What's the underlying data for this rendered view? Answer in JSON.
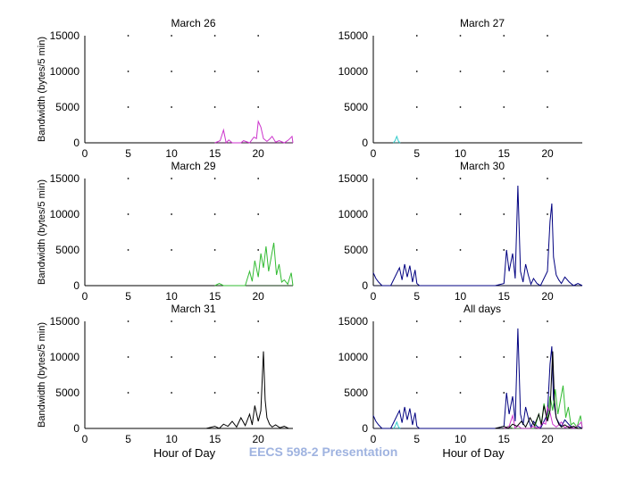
{
  "footer": "EECS 598-2 Presentation",
  "colors": {
    "march26": "#cc33cc",
    "march27": "#33cccc",
    "march29": "#33bb33",
    "march30": "#000080",
    "march31": "#000000",
    "axis": "#000000"
  },
  "chart_data": [
    {
      "type": "line",
      "title": "March 26",
      "ylabel": "Bandwidth (bytes/5 min)",
      "xlabel": "",
      "xlim": [
        0,
        24
      ],
      "ylim": [
        0,
        15000
      ],
      "xticks": [
        0,
        5,
        10,
        15,
        20
      ],
      "yticks": [
        0,
        5000,
        10000,
        15000
      ],
      "series": [
        {
          "name": "March 26",
          "color": "#cc33cc",
          "x": [
            15,
            15.6,
            16,
            16.3,
            16.6,
            17,
            18,
            18.3,
            19,
            19.5,
            19.8,
            20,
            20.3,
            20.6,
            21,
            21.3,
            21.6,
            22,
            22.4,
            23,
            23.5,
            23.9,
            24
          ],
          "y": [
            0,
            300,
            1800,
            0,
            400,
            0,
            0,
            300,
            0,
            800,
            600,
            3000,
            2200,
            600,
            200,
            500,
            900,
            100,
            300,
            0,
            400,
            900,
            0
          ]
        }
      ]
    },
    {
      "type": "line",
      "title": "March 27",
      "ylabel": "",
      "xlabel": "",
      "xlim": [
        0,
        24
      ],
      "ylim": [
        0,
        15000
      ],
      "xticks": [
        0,
        5,
        10,
        15,
        20
      ],
      "yticks": [
        0,
        5000,
        10000,
        15000
      ],
      "series": [
        {
          "name": "March 27",
          "color": "#33cccc",
          "x": [
            2.3,
            2.5,
            2.7,
            2.9,
            3.1
          ],
          "y": [
            0,
            300,
            900,
            200,
            0
          ]
        }
      ]
    },
    {
      "type": "line",
      "title": "March 29",
      "ylabel": "Bandwidth (bytes/5 min)",
      "xlabel": "",
      "xlim": [
        0,
        24
      ],
      "ylim": [
        0,
        15000
      ],
      "xticks": [
        0,
        5,
        10,
        15,
        20
      ],
      "yticks": [
        0,
        5000,
        10000,
        15000
      ],
      "series": [
        {
          "name": "March 29",
          "color": "#33bb33",
          "x": [
            15,
            15.5,
            16,
            18.5,
            19,
            19.3,
            19.6,
            20,
            20.3,
            20.6,
            20.9,
            21.2,
            21.5,
            21.8,
            22.1,
            22.4,
            22.7,
            23,
            23.4,
            23.8,
            24
          ],
          "y": [
            0,
            300,
            0,
            0,
            2000,
            600,
            3500,
            1200,
            4500,
            2500,
            5500,
            2000,
            4000,
            6000,
            1500,
            3000,
            500,
            800,
            200,
            1800,
            0
          ]
        }
      ]
    },
    {
      "type": "line",
      "title": "March 30",
      "ylabel": "",
      "xlabel": "",
      "xlim": [
        0,
        24
      ],
      "ylim": [
        0,
        15000
      ],
      "xticks": [
        0,
        5,
        10,
        15,
        20
      ],
      "yticks": [
        0,
        5000,
        10000,
        15000
      ],
      "series": [
        {
          "name": "March 30",
          "color": "#000080",
          "x": [
            0,
            0.3,
            0.6,
            1,
            2,
            2.6,
            3,
            3.3,
            3.6,
            3.9,
            4.2,
            4.5,
            4.8,
            5,
            5.3,
            14,
            15,
            15.3,
            15.6,
            16,
            16.3,
            16.6,
            16.9,
            17.2,
            17.5,
            17.8,
            18.1,
            18.4,
            18.8,
            19.2,
            20,
            20.3,
            20.5,
            20.7,
            21,
            21.3,
            21.6,
            22,
            22.5,
            23,
            23.5,
            24
          ],
          "y": [
            1800,
            1000,
            500,
            0,
            0,
            1500,
            2500,
            800,
            3000,
            1200,
            2800,
            500,
            2200,
            300,
            0,
            0,
            300,
            5000,
            2000,
            4500,
            1000,
            14000,
            2000,
            500,
            3000,
            1500,
            200,
            1000,
            300,
            0,
            2000,
            9000,
            11500,
            4000,
            1500,
            800,
            300,
            1200,
            500,
            0,
            300,
            0
          ]
        }
      ]
    },
    {
      "type": "line",
      "title": "March 31",
      "ylabel": "Bandwidth (bytes/5 min)",
      "xlabel": "Hour of Day",
      "xlim": [
        0,
        24
      ],
      "ylim": [
        0,
        15000
      ],
      "xticks": [
        0,
        5,
        10,
        15,
        20
      ],
      "yticks": [
        0,
        5000,
        10000,
        15000
      ],
      "series": [
        {
          "name": "March 31",
          "color": "#000000",
          "x": [
            14,
            15,
            15.5,
            16,
            16.5,
            17,
            17.5,
            18,
            18.5,
            19,
            19.3,
            19.6,
            20,
            20.3,
            20.6,
            20.8,
            21,
            21.3,
            21.6,
            22,
            22.5,
            23,
            23.5,
            24
          ],
          "y": [
            0,
            300,
            0,
            600,
            300,
            1000,
            200,
            1500,
            400,
            2000,
            500,
            3200,
            1000,
            2500,
            10800,
            4000,
            1500,
            600,
            200,
            500,
            100,
            300,
            0,
            0
          ]
        }
      ]
    },
    {
      "type": "line",
      "title": "All days",
      "ylabel": "",
      "xlabel": "Hour of Day",
      "xlim": [
        0,
        24
      ],
      "ylim": [
        0,
        15000
      ],
      "xticks": [
        0,
        5,
        10,
        15,
        20
      ],
      "yticks": [
        0,
        5000,
        10000,
        15000
      ],
      "series": [
        {
          "name": "March 30",
          "color": "#000080",
          "x": [
            0,
            0.3,
            0.6,
            1,
            2,
            2.6,
            3,
            3.3,
            3.6,
            3.9,
            4.2,
            4.5,
            4.8,
            5,
            5.3,
            14,
            15,
            15.3,
            15.6,
            16,
            16.3,
            16.6,
            16.9,
            17.2,
            17.5,
            17.8,
            18.1,
            18.4,
            18.8,
            19.2,
            20,
            20.3,
            20.5,
            20.7,
            21,
            21.3,
            21.6,
            22,
            22.5,
            23,
            23.5,
            24
          ],
          "y": [
            1800,
            1000,
            500,
            0,
            0,
            1500,
            2500,
            800,
            3000,
            1200,
            2800,
            500,
            2200,
            300,
            0,
            0,
            300,
            5000,
            2000,
            4500,
            1000,
            14000,
            2000,
            500,
            3000,
            1500,
            200,
            1000,
            300,
            0,
            2000,
            9000,
            11500,
            4000,
            1500,
            800,
            300,
            1200,
            500,
            0,
            300,
            0
          ]
        },
        {
          "name": "March 29",
          "color": "#33bb33",
          "x": [
            15,
            15.5,
            16,
            18.5,
            19,
            19.3,
            19.6,
            20,
            20.3,
            20.6,
            20.9,
            21.2,
            21.5,
            21.8,
            22.1,
            22.4,
            22.7,
            23,
            23.4,
            23.8,
            24
          ],
          "y": [
            0,
            300,
            0,
            0,
            2000,
            600,
            3500,
            1200,
            4500,
            2500,
            5500,
            2000,
            4000,
            6000,
            1500,
            3000,
            500,
            800,
            200,
            1800,
            0
          ]
        },
        {
          "name": "March 26",
          "color": "#cc33cc",
          "x": [
            15,
            15.6,
            16,
            16.3,
            16.6,
            17,
            18,
            18.3,
            19,
            19.5,
            19.8,
            20,
            20.3,
            20.6,
            21,
            21.3,
            21.6,
            22,
            22.4,
            23,
            23.5,
            23.9,
            24
          ],
          "y": [
            0,
            300,
            1800,
            0,
            400,
            0,
            0,
            300,
            0,
            800,
            600,
            3000,
            2200,
            600,
            200,
            500,
            900,
            100,
            300,
            0,
            400,
            900,
            0
          ]
        },
        {
          "name": "March 27",
          "color": "#33cccc",
          "x": [
            2.3,
            2.5,
            2.7,
            2.9,
            3.1
          ],
          "y": [
            0,
            300,
            900,
            200,
            0
          ]
        },
        {
          "name": "March 31",
          "color": "#000000",
          "x": [
            14,
            15,
            15.5,
            16,
            16.5,
            17,
            17.5,
            18,
            18.5,
            19,
            19.3,
            19.6,
            20,
            20.3,
            20.6,
            20.8,
            21,
            21.3,
            21.6,
            22,
            22.5,
            23,
            23.5,
            24
          ],
          "y": [
            0,
            300,
            0,
            600,
            300,
            1000,
            200,
            1500,
            400,
            2000,
            500,
            3200,
            1000,
            2500,
            10800,
            4000,
            1500,
            600,
            200,
            500,
            100,
            300,
            0,
            0
          ]
        }
      ]
    }
  ]
}
